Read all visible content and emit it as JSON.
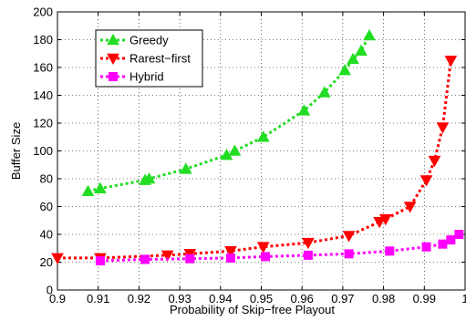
{
  "chart_data": {
    "type": "line",
    "title": "",
    "xlabel": "Probability of Skip−free Playout",
    "ylabel": "Buffer Size",
    "xlim": [
      0.9,
      1.0
    ],
    "ylim": [
      0,
      200
    ],
    "xticks": [
      0.9,
      0.91,
      0.92,
      0.93,
      0.94,
      0.95,
      0.96,
      0.97,
      0.98,
      0.99,
      1.0
    ],
    "xtick_labels": [
      "0.9",
      "0.91",
      "0.92",
      "0.93",
      "0.94",
      "0.95",
      "0.96",
      "0.97",
      "0.98",
      "0.99",
      "1"
    ],
    "yticks": [
      0,
      20,
      40,
      60,
      80,
      100,
      120,
      140,
      160,
      180,
      200
    ],
    "ytick_labels": [
      "0",
      "20",
      "40",
      "60",
      "80",
      "100",
      "120",
      "140",
      "160",
      "180",
      "200"
    ],
    "grid": true,
    "legend_position": "top-left",
    "series": [
      {
        "name": "Greedy",
        "color": "#22dd22",
        "marker": "triangle-up",
        "x": [
          0.9075,
          0.9105,
          0.9215,
          0.9225,
          0.9315,
          0.9415,
          0.9435,
          0.9505,
          0.9605,
          0.9655,
          0.9705,
          0.9725,
          0.9745,
          0.9765
        ],
        "y": [
          71,
          73,
          79,
          80,
          87,
          97,
          100,
          110,
          129,
          142,
          158,
          166,
          172,
          183
        ]
      },
      {
        "name": "Rarest−first",
        "color": "#ff0000",
        "marker": "triangle-down",
        "x": [
          0.9,
          0.9105,
          0.927,
          0.9325,
          0.9425,
          0.9505,
          0.9615,
          0.9715,
          0.979,
          0.9805,
          0.9865,
          0.9905,
          0.9925,
          0.9945,
          0.9965
        ],
        "y": [
          23,
          23,
          25,
          26,
          28,
          31,
          34,
          39,
          49,
          51,
          60,
          79,
          93,
          117,
          165
        ]
      },
      {
        "name": "Hybrid",
        "color": "#ff00ff",
        "marker": "square",
        "x": [
          0.9105,
          0.9215,
          0.9325,
          0.9425,
          0.951,
          0.9615,
          0.9715,
          0.9815,
          0.9905,
          0.9945,
          0.9965,
          0.9985
        ],
        "y": [
          21,
          22,
          22.5,
          23,
          24,
          25,
          26,
          28,
          31,
          33,
          36,
          40
        ]
      }
    ]
  }
}
